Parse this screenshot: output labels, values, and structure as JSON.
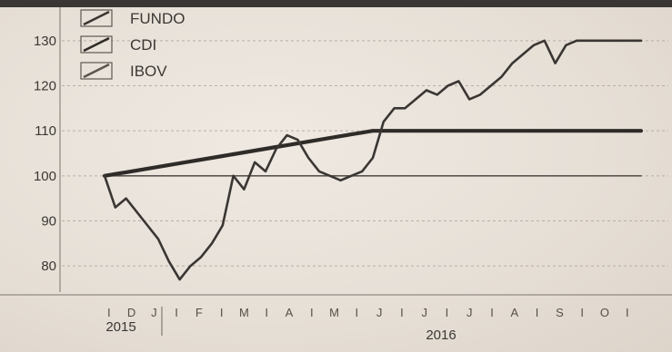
{
  "chart_data": {
    "type": "line",
    "title": "",
    "xlabel": "",
    "ylabel": "",
    "ylim": [
      75,
      135
    ],
    "yticks": [
      80,
      90,
      100,
      110,
      120,
      130
    ],
    "grid": true,
    "legend_position": "top-left",
    "x_period_labels": [
      "I",
      "D",
      "J",
      "I",
      "F",
      "I",
      "M",
      "I",
      "A",
      "I",
      "M",
      "I",
      "J",
      "I",
      "J",
      "I",
      "J",
      "I",
      "A",
      "I",
      "S",
      "I",
      "O",
      "I"
    ],
    "year_labels": [
      "2015",
      "2016"
    ],
    "x": [
      0,
      2,
      4,
      6,
      8,
      10,
      12,
      14,
      16,
      18,
      20,
      22,
      24,
      26,
      28,
      30,
      32,
      34,
      36,
      38,
      40,
      42,
      44,
      46,
      48,
      50,
      52,
      54,
      56,
      58,
      60,
      62,
      64,
      66,
      68,
      70,
      72,
      74,
      76,
      78,
      80,
      82,
      84,
      86,
      88,
      90,
      92,
      94,
      96,
      98,
      100
    ],
    "series": [
      {
        "name": "FUNDO",
        "color": "#3a3633",
        "values": [
          100,
          93,
          95,
          92,
          89,
          86,
          81,
          77,
          80,
          82,
          85,
          89,
          100,
          97,
          103,
          101,
          106,
          109,
          108,
          104,
          101,
          100,
          99,
          100,
          101,
          104,
          112,
          115,
          115,
          117,
          119,
          118,
          120,
          121,
          117,
          118,
          120,
          122,
          125,
          127,
          129,
          130,
          125,
          129,
          130,
          130,
          130,
          130,
          130,
          130,
          130
        ]
      },
      {
        "name": "CDI",
        "color": "#2e2b28",
        "values": [
          100,
          100.4,
          100.8,
          101.2,
          101.6,
          102.0,
          102.4,
          102.8,
          103.2,
          103.6,
          104.0,
          104.4,
          104.8,
          105.2,
          105.6,
          106.0,
          106.4,
          106.8,
          107.2,
          107.6,
          108.0,
          108.4,
          108.8,
          109.2,
          109.6,
          110.0,
          110.0,
          110.0,
          110.0,
          110.0,
          110.0,
          110.0,
          110.0,
          110.0,
          110.0,
          110.0,
          110.0,
          110.0,
          110.0,
          110.0,
          110.0,
          110.0,
          110.0,
          110.0,
          110.0,
          110.0,
          110.0,
          110.0,
          110.0,
          110.0,
          110.0
        ]
      },
      {
        "name": "IBOV",
        "color": "#5a5550",
        "values": [
          100,
          100,
          100,
          100,
          100,
          100,
          100,
          100,
          100,
          100,
          100,
          100,
          100,
          100,
          100,
          100,
          100,
          100,
          100,
          100,
          100,
          100,
          100,
          100,
          100,
          100,
          100,
          100,
          100,
          100,
          100,
          100,
          100,
          100,
          100,
          100,
          100,
          100,
          100,
          100,
          100,
          100,
          100,
          100,
          100,
          100,
          100,
          100,
          100,
          100,
          100
        ]
      }
    ]
  }
}
